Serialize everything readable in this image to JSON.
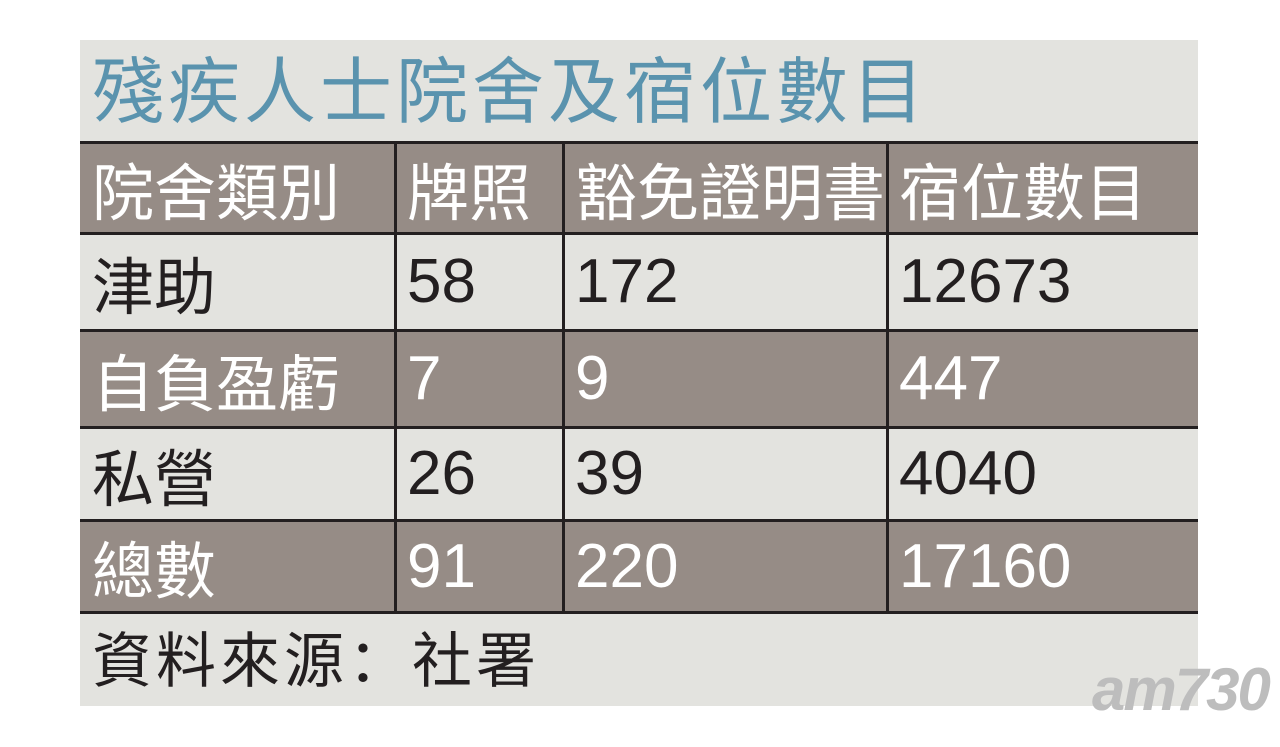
{
  "title": "殘疾人士院舍及宿位數目",
  "table": {
    "header": [
      "院舍類別",
      "牌照",
      "豁免證明書",
      "宿位數目"
    ],
    "rows": [
      [
        "津助",
        58,
        172,
        12673
      ],
      [
        "自負盈虧",
        7,
        9,
        447
      ],
      [
        "私營",
        26,
        39,
        4040
      ],
      [
        "總數",
        91,
        220,
        17160
      ]
    ]
  },
  "source": "資料來源：社署",
  "watermark": "am730"
}
